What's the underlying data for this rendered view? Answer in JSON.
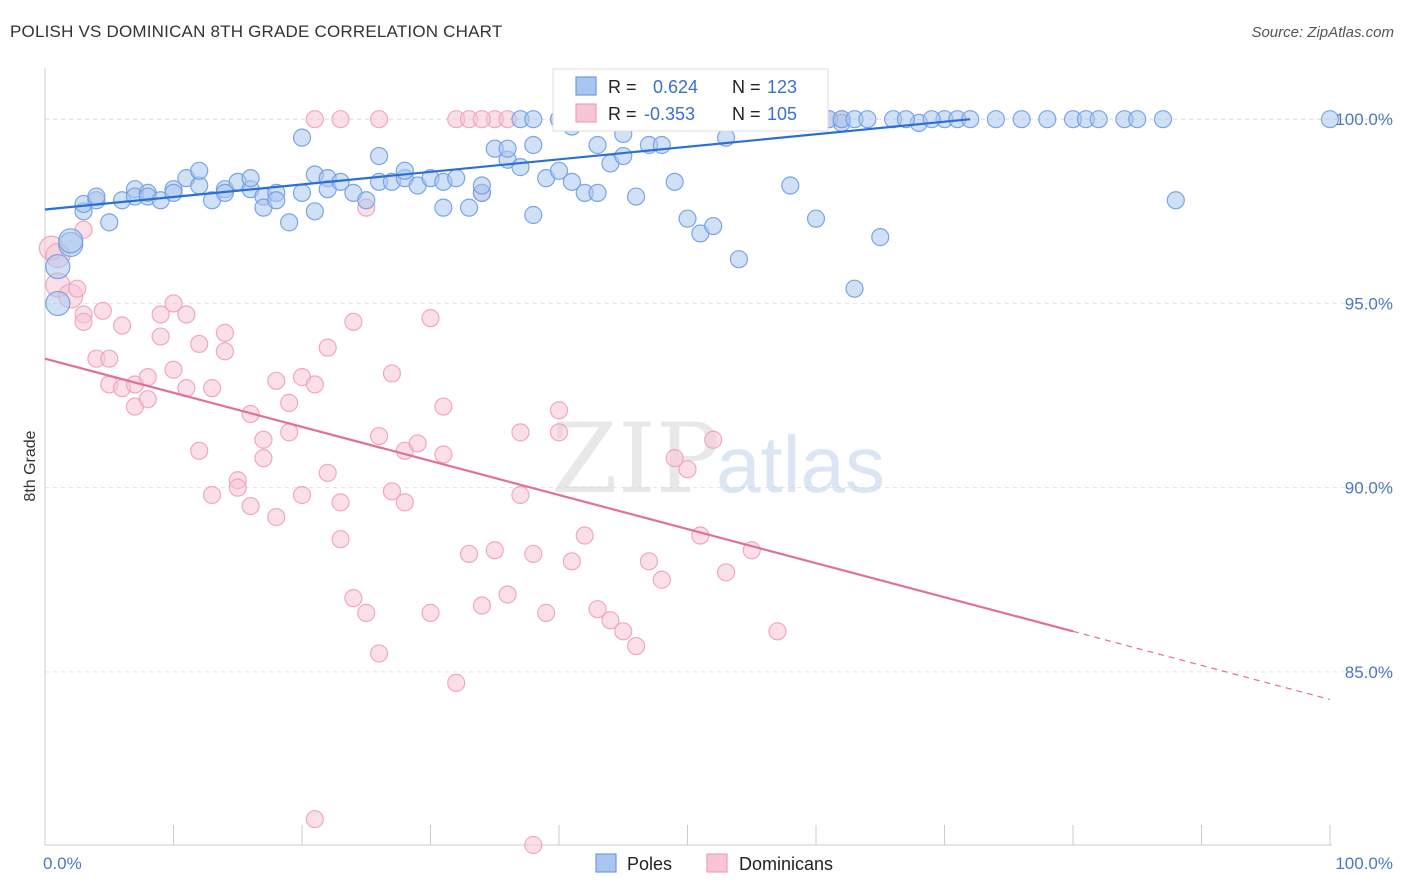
{
  "header": {
    "title": "POLISH VS DOMINICAN 8TH GRADE CORRELATION CHART",
    "source": "Source: ZipAtlas.com"
  },
  "chart_data": {
    "type": "scatter",
    "xlabel": "",
    "ylabel": "8th Grade",
    "xlim": [
      0,
      100
    ],
    "ylim": [
      80.3,
      101.2
    ],
    "x_tick_labels": [
      "0.0%",
      "100.0%"
    ],
    "y_ticks": [
      85,
      90,
      95,
      100
    ],
    "y_tick_labels": [
      "85.0%",
      "90.0%",
      "95.0%",
      "100.0%"
    ],
    "grid": true,
    "watermark": {
      "zip": "ZIP",
      "atlas": "atlas"
    },
    "legend": {
      "placement": "top-center",
      "rows": [
        {
          "r_label": "R =",
          "r_value": "0.624",
          "n_label": "N =",
          "n_value": "123"
        },
        {
          "r_label": "R =",
          "r_value": "-0.353",
          "n_label": "N =",
          "n_value": "105"
        }
      ]
    },
    "series": [
      {
        "name": "Poles",
        "color": "#6f9ce0",
        "fill": "#a9c6ee",
        "trend": {
          "x0": 0,
          "y0": 97.55,
          "x1": 72,
          "y1": 100.0
        },
        "points": [
          [
            1,
            95.0
          ],
          [
            1,
            96.0
          ],
          [
            2,
            96.6
          ],
          [
            2,
            96.7
          ],
          [
            3,
            97.5
          ],
          [
            3,
            97.7
          ],
          [
            4,
            97.8
          ],
          [
            4,
            97.9
          ],
          [
            5,
            97.2
          ],
          [
            6,
            97.8
          ],
          [
            7,
            98.1
          ],
          [
            7,
            97.9
          ],
          [
            8,
            98.0
          ],
          [
            8,
            97.9
          ],
          [
            9,
            97.8
          ],
          [
            10,
            98.1
          ],
          [
            10,
            98.0
          ],
          [
            11,
            98.4
          ],
          [
            12,
            98.2
          ],
          [
            12,
            98.6
          ],
          [
            13,
            97.8
          ],
          [
            14,
            98.1
          ],
          [
            14,
            98.0
          ],
          [
            15,
            98.3
          ],
          [
            16,
            98.1
          ],
          [
            16,
            98.4
          ],
          [
            17,
            97.9
          ],
          [
            17,
            97.6
          ],
          [
            18,
            98.0
          ],
          [
            18,
            97.8
          ],
          [
            19,
            97.2
          ],
          [
            20,
            98.0
          ],
          [
            21,
            97.5
          ],
          [
            21,
            98.5
          ],
          [
            22,
            98.4
          ],
          [
            22,
            98.1
          ],
          [
            23,
            98.3
          ],
          [
            24,
            98.0
          ],
          [
            25,
            97.8
          ],
          [
            26,
            98.3
          ],
          [
            26,
            99.0
          ],
          [
            27,
            98.3
          ],
          [
            28,
            98.4
          ],
          [
            28,
            98.6
          ],
          [
            29,
            98.2
          ],
          [
            30,
            98.4
          ],
          [
            31,
            97.6
          ],
          [
            31,
            98.3
          ],
          [
            32,
            98.4
          ],
          [
            33,
            97.6
          ],
          [
            34,
            98.0
          ],
          [
            34,
            98.2
          ],
          [
            35,
            99.2
          ],
          [
            36,
            98.9
          ],
          [
            36,
            99.2
          ],
          [
            37,
            98.7
          ],
          [
            38,
            97.4
          ],
          [
            38,
            99.3
          ],
          [
            39,
            98.4
          ],
          [
            40,
            98.6
          ],
          [
            41,
            98.3
          ],
          [
            41,
            99.8
          ],
          [
            42,
            98.0
          ],
          [
            43,
            98.0
          ],
          [
            43,
            99.3
          ],
          [
            44,
            98.8
          ],
          [
            45,
            99.0
          ],
          [
            46,
            97.9
          ],
          [
            47,
            99.3
          ],
          [
            48,
            99.3
          ],
          [
            49,
            98.3
          ],
          [
            50,
            97.3
          ],
          [
            51,
            96.9
          ],
          [
            52,
            97.1
          ],
          [
            53,
            99.5
          ],
          [
            54,
            96.2
          ],
          [
            58,
            98.2
          ],
          [
            60,
            97.3
          ],
          [
            62,
            99.9
          ],
          [
            63,
            95.4
          ],
          [
            65,
            96.8
          ],
          [
            68,
            99.9
          ],
          [
            70,
            100.0
          ],
          [
            37,
            100.0
          ],
          [
            38,
            100.0
          ],
          [
            40,
            100.0
          ],
          [
            41,
            100.0
          ],
          [
            42,
            100.0
          ],
          [
            43,
            100.0
          ],
          [
            46,
            100.0
          ],
          [
            47,
            100.0
          ],
          [
            48,
            100.0
          ],
          [
            49,
            100.0
          ],
          [
            50,
            100.0
          ],
          [
            51,
            100.0
          ],
          [
            53,
            100.0
          ],
          [
            55,
            100.0
          ],
          [
            56,
            100.0
          ],
          [
            57,
            100.0
          ],
          [
            58,
            100.0
          ],
          [
            60,
            100.0
          ],
          [
            61,
            100.0
          ],
          [
            62,
            100.0
          ],
          [
            63,
            100.0
          ],
          [
            64,
            100.0
          ],
          [
            66,
            100.0
          ],
          [
            67,
            100.0
          ],
          [
            69,
            100.0
          ],
          [
            71,
            100.0
          ],
          [
            72,
            100.0
          ],
          [
            74,
            100.0
          ],
          [
            76,
            100.0
          ],
          [
            78,
            100.0
          ],
          [
            80,
            100.0
          ],
          [
            81,
            100.0
          ],
          [
            82,
            100.0
          ],
          [
            84,
            100.0
          ],
          [
            85,
            100.0
          ],
          [
            87,
            100.0
          ],
          [
            88,
            97.8
          ],
          [
            100,
            100.0
          ],
          [
            20,
            99.5
          ],
          [
            45,
            99.6
          ]
        ]
      },
      {
        "name": "Dominicans",
        "color": "#f0a0b8",
        "fill": "#f7c5d5",
        "trend": {
          "x0": 0,
          "y0": 93.5,
          "x1": 80,
          "y1": 86.1,
          "dashed_to_x": 100,
          "dashed_to_y": 84.25
        },
        "points": [
          [
            0.5,
            96.5
          ],
          [
            1,
            96.3
          ],
          [
            1,
            95.5
          ],
          [
            2,
            95.2
          ],
          [
            2.5,
            95.4
          ],
          [
            3,
            94.7
          ],
          [
            3,
            94.5
          ],
          [
            4,
            93.5
          ],
          [
            4.5,
            94.8
          ],
          [
            5,
            93.5
          ],
          [
            5,
            92.8
          ],
          [
            6,
            92.7
          ],
          [
            6,
            94.4
          ],
          [
            7,
            92.8
          ],
          [
            7,
            92.2
          ],
          [
            8,
            92.4
          ],
          [
            8,
            93.0
          ],
          [
            9,
            94.1
          ],
          [
            9,
            94.7
          ],
          [
            10,
            93.2
          ],
          [
            10,
            95.0
          ],
          [
            11,
            94.7
          ],
          [
            11,
            92.7
          ],
          [
            12,
            91.0
          ],
          [
            12,
            93.9
          ],
          [
            13,
            89.8
          ],
          [
            13,
            92.7
          ],
          [
            14,
            93.7
          ],
          [
            14,
            94.2
          ],
          [
            15,
            90.2
          ],
          [
            15,
            90.0
          ],
          [
            16,
            92.0
          ],
          [
            16,
            89.5
          ],
          [
            17,
            90.8
          ],
          [
            17,
            91.3
          ],
          [
            18,
            92.9
          ],
          [
            18,
            89.2
          ],
          [
            19,
            92.3
          ],
          [
            19,
            91.5
          ],
          [
            20,
            93.0
          ],
          [
            20,
            89.8
          ],
          [
            21,
            92.8
          ],
          [
            21,
            81.0
          ],
          [
            22,
            93.8
          ],
          [
            22,
            90.4
          ],
          [
            23,
            88.6
          ],
          [
            23,
            89.6
          ],
          [
            24,
            94.5
          ],
          [
            24,
            87.0
          ],
          [
            25,
            86.6
          ],
          [
            25,
            97.6
          ],
          [
            26,
            91.4
          ],
          [
            26,
            85.5
          ],
          [
            27,
            89.9
          ],
          [
            27,
            93.1
          ],
          [
            28,
            91.0
          ],
          [
            28,
            89.6
          ],
          [
            29,
            91.2
          ],
          [
            30,
            94.6
          ],
          [
            30,
            86.6
          ],
          [
            31,
            92.2
          ],
          [
            31,
            90.9
          ],
          [
            32,
            84.7
          ],
          [
            33,
            88.2
          ],
          [
            34,
            86.8
          ],
          [
            34,
            98.0
          ],
          [
            35,
            88.3
          ],
          [
            36,
            87.1
          ],
          [
            37,
            89.8
          ],
          [
            37,
            91.5
          ],
          [
            38,
            88.2
          ],
          [
            38,
            80.3
          ],
          [
            39,
            86.6
          ],
          [
            40,
            92.1
          ],
          [
            40,
            91.5
          ],
          [
            41,
            88.0
          ],
          [
            42,
            88.7
          ],
          [
            43,
            86.7
          ],
          [
            44,
            86.4
          ],
          [
            45,
            86.1
          ],
          [
            46,
            85.7
          ],
          [
            47,
            88.0
          ],
          [
            48,
            87.5
          ],
          [
            49,
            90.8
          ],
          [
            50,
            90.5
          ],
          [
            51,
            88.7
          ],
          [
            52,
            91.3
          ],
          [
            53,
            87.7
          ],
          [
            55,
            88.3
          ],
          [
            57,
            86.1
          ],
          [
            21,
            100.0
          ],
          [
            23,
            100.0
          ],
          [
            26,
            100.0
          ],
          [
            32,
            100.0
          ],
          [
            33,
            100.0
          ],
          [
            35,
            100.0
          ],
          [
            36,
            100.0
          ],
          [
            40,
            100.0
          ],
          [
            55,
            100.0
          ],
          [
            60,
            100.0
          ],
          [
            61,
            100.0
          ],
          [
            62,
            100.0
          ],
          [
            34,
            100.0
          ],
          [
            42,
            100.0
          ],
          [
            3,
            97.0
          ]
        ]
      }
    ]
  }
}
